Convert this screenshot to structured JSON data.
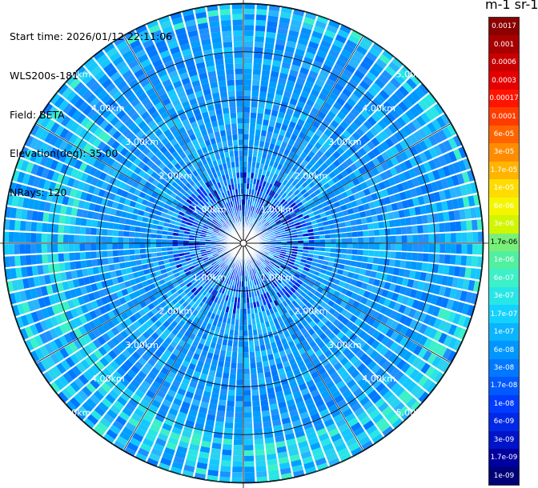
{
  "header": {
    "start_time": "Start time: 2026/01/12 22:11:06",
    "instrument": "WLS200s-181",
    "field": "Field: BETA",
    "elevation": "Elevation(deg): 35.00",
    "nrays": "NRays: 120"
  },
  "colorbar": {
    "title": "m-1 sr-1",
    "entries": [
      {
        "label": "0.0017",
        "color": "#8b0000",
        "text": "#ffffff"
      },
      {
        "label": "0.001",
        "color": "#a80000",
        "text": "#ffffff"
      },
      {
        "label": "0.0006",
        "color": "#c80000",
        "text": "#ffffff"
      },
      {
        "label": "0.0003",
        "color": "#e40000",
        "text": "#ffffff"
      },
      {
        "label": "0.00017",
        "color": "#ff1400",
        "text": "#ffffff"
      },
      {
        "label": "0.0001",
        "color": "#ff3c00",
        "text": "#ffffff"
      },
      {
        "label": "6e-05",
        "color": "#ff6400",
        "text": "#ffffff"
      },
      {
        "label": "3e-05",
        "color": "#ff8c00",
        "text": "#ffffff"
      },
      {
        "label": "1.7e-05",
        "color": "#ffb400",
        "text": "#ffffff"
      },
      {
        "label": "1e-05",
        "color": "#ffdc00",
        "text": "#ffffff"
      },
      {
        "label": "6e-06",
        "color": "#f5f500",
        "text": "#ffffff"
      },
      {
        "label": "3e-06",
        "color": "#d2f500",
        "text": "#ffffff"
      },
      {
        "label": "1.7e-06",
        "color": "#78f078",
        "text": "#000000"
      },
      {
        "label": "1e-06",
        "color": "#50f0a0",
        "text": "#ffffff"
      },
      {
        "label": "6e-07",
        "color": "#3cf0c8",
        "text": "#ffffff"
      },
      {
        "label": "3e-07",
        "color": "#28e6e6",
        "text": "#ffffff"
      },
      {
        "label": "1.7e-07",
        "color": "#14d2ff",
        "text": "#ffffff"
      },
      {
        "label": "1e-07",
        "color": "#0ab4ff",
        "text": "#ffffff"
      },
      {
        "label": "6e-08",
        "color": "#0096ff",
        "text": "#ffffff"
      },
      {
        "label": "3e-08",
        "color": "#0078ff",
        "text": "#ffffff"
      },
      {
        "label": "1.7e-08",
        "color": "#005aff",
        "text": "#ffffff"
      },
      {
        "label": "1e-08",
        "color": "#003cff",
        "text": "#ffffff"
      },
      {
        "label": "6e-09",
        "color": "#0028e6",
        "text": "#ffffff"
      },
      {
        "label": "3e-09",
        "color": "#0014c8",
        "text": "#ffffff"
      },
      {
        "label": "1.7e-09",
        "color": "#0000a0",
        "text": "#ffffff"
      },
      {
        "label": "1e-09",
        "color": "#000078",
        "text": "#ffffff"
      }
    ]
  },
  "range_labels": [
    "1.00km",
    "2.00km",
    "3.00km",
    "4.00km",
    "5.00km"
  ],
  "plot": {
    "nrays": 120,
    "max_range_km": 5.8,
    "background_colors": [
      "#0a8cff",
      "#0096ff",
      "#00a0ff",
      "#1e90ff",
      "#0078ff",
      "#28b4ff",
      "#14c8ff"
    ],
    "edge_colors": [
      "#14c8ff",
      "#28e6e6",
      "#3cf0c8",
      "#28d2f0"
    ],
    "center_colors": [
      "#003cff",
      "#0028e6",
      "#005aff",
      "#0014c8"
    ]
  }
}
